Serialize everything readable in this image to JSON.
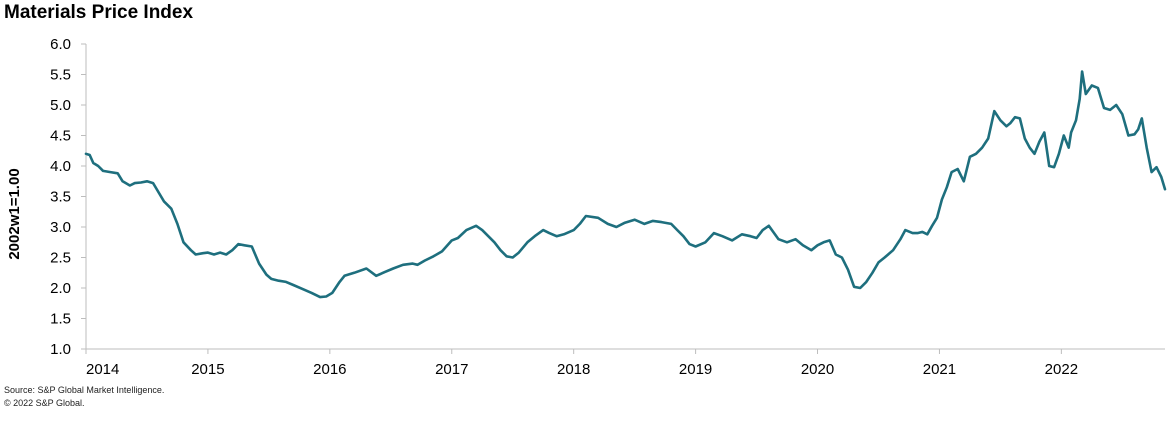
{
  "chart_data": {
    "type": "line",
    "title": "Materials Price Index",
    "xlabel": "",
    "ylabel": "2002w1=1.00",
    "ylim": [
      1.0,
      6.0
    ],
    "xlim": [
      2014.0,
      2022.85
    ],
    "yticks": [
      "1.0",
      "1.5",
      "2.0",
      "2.5",
      "3.0",
      "3.5",
      "4.0",
      "4.5",
      "5.0",
      "5.5",
      "6.0"
    ],
    "xticks": [
      "2014",
      "2015",
      "2016",
      "2017",
      "2018",
      "2019",
      "2020",
      "2021",
      "2022"
    ],
    "grid": false,
    "legend": "none",
    "line_color": "#1e6f7e",
    "series": [
      {
        "x": [
          2014.0,
          2014.03,
          2014.06,
          2014.1,
          2014.14,
          2014.2,
          2014.26,
          2014.3,
          2014.36,
          2014.4,
          2014.45,
          2014.5,
          2014.55,
          2014.6,
          2014.64,
          2014.7,
          2014.75,
          2014.8,
          2014.86,
          2014.9,
          2014.96,
          2015.0,
          2015.05,
          2015.1,
          2015.15,
          2015.2,
          2015.25,
          2015.3,
          2015.36,
          2015.42,
          2015.48,
          2015.52,
          2015.58,
          2015.64,
          2015.7,
          2015.78,
          2015.85,
          2015.92,
          2015.97,
          2016.02,
          2016.08,
          2016.12,
          2016.2,
          2016.3,
          2016.38,
          2016.45,
          2016.52,
          2016.6,
          2016.68,
          2016.72,
          2016.78,
          2016.85,
          2016.92,
          2017.0,
          2017.05,
          2017.12,
          2017.2,
          2017.25,
          2017.3,
          2017.35,
          2017.4,
          2017.45,
          2017.5,
          2017.55,
          2017.62,
          2017.68,
          2017.75,
          2017.8,
          2017.86,
          2017.92,
          2018.0,
          2018.05,
          2018.1,
          2018.2,
          2018.28,
          2018.35,
          2018.42,
          2018.5,
          2018.58,
          2018.65,
          2018.72,
          2018.8,
          2018.85,
          2018.9,
          2018.95,
          2019.0,
          2019.08,
          2019.15,
          2019.22,
          2019.3,
          2019.38,
          2019.45,
          2019.5,
          2019.55,
          2019.6,
          2019.68,
          2019.75,
          2019.82,
          2019.88,
          2019.95,
          2020.0,
          2020.05,
          2020.1,
          2020.15,
          2020.2,
          2020.25,
          2020.3,
          2020.35,
          2020.4,
          2020.45,
          2020.5,
          2020.55,
          2020.62,
          2020.68,
          2020.72,
          2020.78,
          2020.82,
          2020.86,
          2020.9,
          2020.94,
          2020.98,
          2021.02,
          2021.06,
          2021.1,
          2021.15,
          2021.2,
          2021.25,
          2021.3,
          2021.35,
          2021.4,
          2021.45,
          2021.5,
          2021.55,
          2021.58,
          2021.62,
          2021.66,
          2021.7,
          2021.74,
          2021.78,
          2021.82,
          2021.86,
          2021.9,
          2021.94,
          2021.98,
          2022.02,
          2022.06,
          2022.08,
          2022.12,
          2022.15,
          2022.17,
          2022.2,
          2022.25,
          2022.3,
          2022.35,
          2022.4,
          2022.45,
          2022.5,
          2022.55,
          2022.6,
          2022.63,
          2022.66,
          2022.7,
          2022.74,
          2022.78,
          2022.82,
          2022.85
        ],
        "values": [
          4.2,
          4.18,
          4.05,
          4.0,
          3.92,
          3.9,
          3.88,
          3.75,
          3.68,
          3.72,
          3.73,
          3.75,
          3.72,
          3.55,
          3.42,
          3.3,
          3.05,
          2.75,
          2.62,
          2.55,
          2.57,
          2.58,
          2.55,
          2.58,
          2.55,
          2.62,
          2.72,
          2.7,
          2.68,
          2.4,
          2.22,
          2.15,
          2.12,
          2.1,
          2.05,
          1.98,
          1.92,
          1.85,
          1.86,
          1.92,
          2.1,
          2.2,
          2.25,
          2.32,
          2.2,
          2.26,
          2.32,
          2.38,
          2.4,
          2.38,
          2.45,
          2.52,
          2.6,
          2.78,
          2.82,
          2.95,
          3.02,
          2.95,
          2.85,
          2.75,
          2.62,
          2.52,
          2.5,
          2.58,
          2.75,
          2.85,
          2.95,
          2.9,
          2.85,
          2.88,
          2.95,
          3.05,
          3.18,
          3.15,
          3.05,
          3.0,
          3.07,
          3.12,
          3.05,
          3.1,
          3.08,
          3.05,
          2.95,
          2.85,
          2.72,
          2.68,
          2.75,
          2.9,
          2.85,
          2.78,
          2.88,
          2.85,
          2.82,
          2.95,
          3.02,
          2.8,
          2.75,
          2.8,
          2.7,
          2.62,
          2.7,
          2.75,
          2.78,
          2.55,
          2.5,
          2.3,
          2.02,
          2.0,
          2.1,
          2.25,
          2.42,
          2.5,
          2.62,
          2.8,
          2.95,
          2.9,
          2.9,
          2.92,
          2.88,
          3.02,
          3.15,
          3.45,
          3.65,
          3.9,
          3.95,
          3.75,
          4.15,
          4.2,
          4.3,
          4.45,
          4.9,
          4.75,
          4.65,
          4.7,
          4.8,
          4.78,
          4.45,
          4.3,
          4.2,
          4.4,
          4.55,
          4.0,
          3.98,
          4.2,
          4.5,
          4.3,
          4.55,
          4.75,
          5.1,
          5.55,
          5.18,
          5.32,
          5.28,
          4.95,
          4.92,
          5.0,
          4.85,
          4.5,
          4.52,
          4.6,
          4.78,
          4.3,
          3.9,
          3.98,
          3.82,
          3.62
        ]
      }
    ]
  },
  "footer": {
    "source": "Source: S&P Global Market Intelligence.",
    "copyright": "© 2022 S&P Global."
  }
}
